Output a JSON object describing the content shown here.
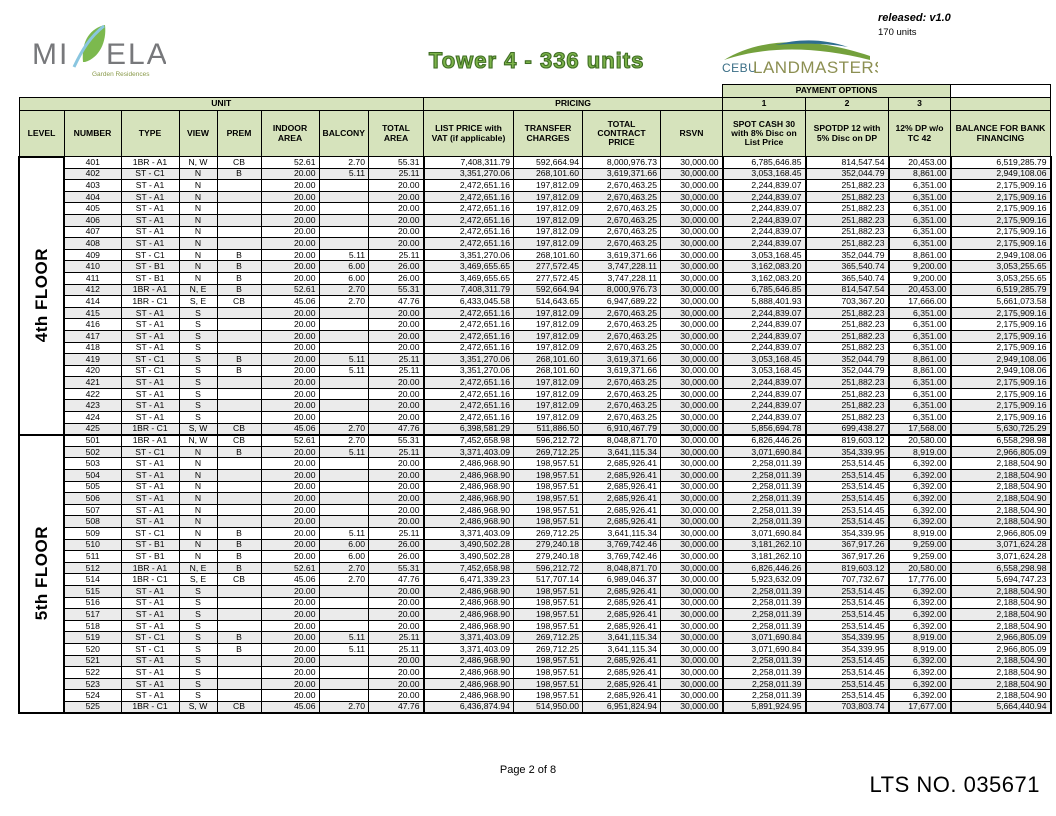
{
  "header": {
    "title": "Tower 4 - 336 units",
    "released": "released: v1.0",
    "units_count": "170 units",
    "brand_left": {
      "name_left": "MI",
      "name_right": "ELA",
      "subtitle": "Garden Residences"
    },
    "brand_right": {
      "cebu": "CEBU",
      "landmasters": "LANDMASTERS"
    },
    "colors": {
      "header_green": "#d6e3bc",
      "title_green": "#7cb34a",
      "title_outline": "#3f6d24",
      "leaf_green": "#7cb94e",
      "swoosh_blue": "#8ac6e0",
      "brand_gray": "#77787b",
      "hill_green": "#74a13c",
      "hill_blue": "#2e6e8e",
      "cebu_blue": "#3a6e86",
      "landmasters_olive": "#8c8f52"
    }
  },
  "table": {
    "groups": {
      "unit": "UNIT",
      "pricing": "PRICING",
      "payment": "PAYMENT OPTIONS"
    },
    "payment_numbers": [
      "1",
      "2",
      "3"
    ],
    "columns": [
      "LEVEL",
      "NUMBER",
      "TYPE",
      "VIEW",
      "PREM",
      "INDOOR AREA",
      "BALCONY",
      "TOTAL AREA",
      "LIST PRICE with VAT (if applicable)",
      "TRANSFER CHARGES",
      "TOTAL CONTRACT PRICE",
      "RSVN",
      "SPOT CASH 30 with 8% Disc on List Price",
      "SPOTDP 12 with 5% Disc on DP",
      "12% DP w/o TC 42",
      "BALANCE FOR BANK FINANCING"
    ],
    "column_keys": [
      "number",
      "type",
      "view",
      "prem",
      "indoor_area",
      "balcony",
      "total_area",
      "list_price",
      "transfer_charges",
      "total_contract_price",
      "rsvn",
      "spot_cash_30",
      "spotdp_12",
      "dp_12_wo_tc",
      "bank_balance"
    ],
    "floors": [
      {
        "label": "4th FLOOR",
        "rows": [
          [
            "401",
            "1BR - A1",
            "N, W",
            "CB",
            "52.61",
            "2.70",
            "55.31",
            "7,408,311.79",
            "592,664.94",
            "8,000,976.73",
            "30,000.00",
            "6,785,646.85",
            "814,547.54",
            "20,453.00",
            "6,519,285.79"
          ],
          [
            "402",
            "ST - C1",
            "N",
            "B",
            "20.00",
            "5.11",
            "25.11",
            "3,351,270.06",
            "268,101.60",
            "3,619,371.66",
            "30,000.00",
            "3,053,168.45",
            "352,044.79",
            "8,861.00",
            "2,949,108.06"
          ],
          [
            "403",
            "ST - A1",
            "N",
            "",
            "20.00",
            "",
            "20.00",
            "2,472,651.16",
            "197,812.09",
            "2,670,463.25",
            "30,000.00",
            "2,244,839.07",
            "251,882.23",
            "6,351.00",
            "2,175,909.16"
          ],
          [
            "404",
            "ST - A1",
            "N",
            "",
            "20.00",
            "",
            "20.00",
            "2,472,651.16",
            "197,812.09",
            "2,670,463.25",
            "30,000.00",
            "2,244,839.07",
            "251,882.23",
            "6,351.00",
            "2,175,909.16"
          ],
          [
            "405",
            "ST - A1",
            "N",
            "",
            "20.00",
            "",
            "20.00",
            "2,472,651.16",
            "197,812.09",
            "2,670,463.25",
            "30,000.00",
            "2,244,839.07",
            "251,882.23",
            "6,351.00",
            "2,175,909.16"
          ],
          [
            "406",
            "ST - A1",
            "N",
            "",
            "20.00",
            "",
            "20.00",
            "2,472,651.16",
            "197,812.09",
            "2,670,463.25",
            "30,000.00",
            "2,244,839.07",
            "251,882.23",
            "6,351.00",
            "2,175,909.16"
          ],
          [
            "407",
            "ST - A1",
            "N",
            "",
            "20.00",
            "",
            "20.00",
            "2,472,651.16",
            "197,812.09",
            "2,670,463.25",
            "30,000.00",
            "2,244,839.07",
            "251,882.23",
            "6,351.00",
            "2,175,909.16"
          ],
          [
            "408",
            "ST - A1",
            "N",
            "",
            "20.00",
            "",
            "20.00",
            "2,472,651.16",
            "197,812.09",
            "2,670,463.25",
            "30,000.00",
            "2,244,839.07",
            "251,882.23",
            "6,351.00",
            "2,175,909.16"
          ],
          [
            "409",
            "ST - C1",
            "N",
            "B",
            "20.00",
            "5.11",
            "25.11",
            "3,351,270.06",
            "268,101.60",
            "3,619,371.66",
            "30,000.00",
            "3,053,168.45",
            "352,044.79",
            "8,861.00",
            "2,949,108.06"
          ],
          [
            "410",
            "ST - B1",
            "N",
            "B",
            "20.00",
            "6.00",
            "26.00",
            "3,469,655.65",
            "277,572.45",
            "3,747,228.11",
            "30,000.00",
            "3,162,083.20",
            "365,540.74",
            "9,200.00",
            "3,053,255.65"
          ],
          [
            "411",
            "ST - B1",
            "N",
            "B",
            "20.00",
            "6.00",
            "26.00",
            "3,469,655.65",
            "277,572.45",
            "3,747,228.11",
            "30,000.00",
            "3,162,083.20",
            "365,540.74",
            "9,200.00",
            "3,053,255.65"
          ],
          [
            "412",
            "1BR - A1",
            "N, E",
            "B",
            "52.61",
            "2.70",
            "55.31",
            "7,408,311.79",
            "592,664.94",
            "8,000,976.73",
            "30,000.00",
            "6,785,646.85",
            "814,547.54",
            "20,453.00",
            "6,519,285.79"
          ],
          [
            "414",
            "1BR - C1",
            "S, E",
            "CB",
            "45.06",
            "2.70",
            "47.76",
            "6,433,045.58",
            "514,643.65",
            "6,947,689.22",
            "30,000.00",
            "5,888,401.93",
            "703,367.20",
            "17,666.00",
            "5,661,073.58"
          ],
          [
            "415",
            "ST - A1",
            "S",
            "",
            "20.00",
            "",
            "20.00",
            "2,472,651.16",
            "197,812.09",
            "2,670,463.25",
            "30,000.00",
            "2,244,839.07",
            "251,882.23",
            "6,351.00",
            "2,175,909.16"
          ],
          [
            "416",
            "ST - A1",
            "S",
            "",
            "20.00",
            "",
            "20.00",
            "2,472,651.16",
            "197,812.09",
            "2,670,463.25",
            "30,000.00",
            "2,244,839.07",
            "251,882.23",
            "6,351.00",
            "2,175,909.16"
          ],
          [
            "417",
            "ST - A1",
            "S",
            "",
            "20.00",
            "",
            "20.00",
            "2,472,651.16",
            "197,812.09",
            "2,670,463.25",
            "30,000.00",
            "2,244,839.07",
            "251,882.23",
            "6,351.00",
            "2,175,909.16"
          ],
          [
            "418",
            "ST - A1",
            "S",
            "",
            "20.00",
            "",
            "20.00",
            "2,472,651.16",
            "197,812.09",
            "2,670,463.25",
            "30,000.00",
            "2,244,839.07",
            "251,882.23",
            "6,351.00",
            "2,175,909.16"
          ],
          [
            "419",
            "ST - C1",
            "S",
            "B",
            "20.00",
            "5.11",
            "25.11",
            "3,351,270.06",
            "268,101.60",
            "3,619,371.66",
            "30,000.00",
            "3,053,168.45",
            "352,044.79",
            "8,861.00",
            "2,949,108.06"
          ],
          [
            "420",
            "ST - C1",
            "S",
            "B",
            "20.00",
            "5.11",
            "25.11",
            "3,351,270.06",
            "268,101.60",
            "3,619,371.66",
            "30,000.00",
            "3,053,168.45",
            "352,044.79",
            "8,861.00",
            "2,949,108.06"
          ],
          [
            "421",
            "ST - A1",
            "S",
            "",
            "20.00",
            "",
            "20.00",
            "2,472,651.16",
            "197,812.09",
            "2,670,463.25",
            "30,000.00",
            "2,244,839.07",
            "251,882.23",
            "6,351.00",
            "2,175,909.16"
          ],
          [
            "422",
            "ST - A1",
            "S",
            "",
            "20.00",
            "",
            "20.00",
            "2,472,651.16",
            "197,812.09",
            "2,670,463.25",
            "30,000.00",
            "2,244,839.07",
            "251,882.23",
            "6,351.00",
            "2,175,909.16"
          ],
          [
            "423",
            "ST - A1",
            "S",
            "",
            "20.00",
            "",
            "20.00",
            "2,472,651.16",
            "197,812.09",
            "2,670,463.25",
            "30,000.00",
            "2,244,839.07",
            "251,882.23",
            "6,351.00",
            "2,175,909.16"
          ],
          [
            "424",
            "ST - A1",
            "S",
            "",
            "20.00",
            "",
            "20.00",
            "2,472,651.16",
            "197,812.09",
            "2,670,463.25",
            "30,000.00",
            "2,244,839.07",
            "251,882.23",
            "6,351.00",
            "2,175,909.16"
          ],
          [
            "425",
            "1BR - C1",
            "S, W",
            "CB",
            "45.06",
            "2.70",
            "47.76",
            "6,398,581.29",
            "511,886.50",
            "6,910,467.79",
            "30,000.00",
            "5,856,694.78",
            "699,438.27",
            "17,568.00",
            "5,630,725.29"
          ]
        ]
      },
      {
        "label": "5th FLOOR",
        "rows": [
          [
            "501",
            "1BR - A1",
            "N, W",
            "CB",
            "52.61",
            "2.70",
            "55.31",
            "7,452,658.98",
            "596,212.72",
            "8,048,871.70",
            "30,000.00",
            "6,826,446.26",
            "819,603.12",
            "20,580.00",
            "6,558,298.98"
          ],
          [
            "502",
            "ST - C1",
            "N",
            "B",
            "20.00",
            "5.11",
            "25.11",
            "3,371,403.09",
            "269,712.25",
            "3,641,115.34",
            "30,000.00",
            "3,071,690.84",
            "354,339.95",
            "8,919.00",
            "2,966,805.09"
          ],
          [
            "503",
            "ST - A1",
            "N",
            "",
            "20.00",
            "",
            "20.00",
            "2,486,968.90",
            "198,957.51",
            "2,685,926.41",
            "30,000.00",
            "2,258,011.39",
            "253,514.45",
            "6,392.00",
            "2,188,504.90"
          ],
          [
            "504",
            "ST - A1",
            "N",
            "",
            "20.00",
            "",
            "20.00",
            "2,486,968.90",
            "198,957.51",
            "2,685,926.41",
            "30,000.00",
            "2,258,011.39",
            "253,514.45",
            "6,392.00",
            "2,188,504.90"
          ],
          [
            "505",
            "ST - A1",
            "N",
            "",
            "20.00",
            "",
            "20.00",
            "2,486,968.90",
            "198,957.51",
            "2,685,926.41",
            "30,000.00",
            "2,258,011.39",
            "253,514.45",
            "6,392.00",
            "2,188,504.90"
          ],
          [
            "506",
            "ST - A1",
            "N",
            "",
            "20.00",
            "",
            "20.00",
            "2,486,968.90",
            "198,957.51",
            "2,685,926.41",
            "30,000.00",
            "2,258,011.39",
            "253,514.45",
            "6,392.00",
            "2,188,504.90"
          ],
          [
            "507",
            "ST - A1",
            "N",
            "",
            "20.00",
            "",
            "20.00",
            "2,486,968.90",
            "198,957.51",
            "2,685,926.41",
            "30,000.00",
            "2,258,011.39",
            "253,514.45",
            "6,392.00",
            "2,188,504.90"
          ],
          [
            "508",
            "ST - A1",
            "N",
            "",
            "20.00",
            "",
            "20.00",
            "2,486,968.90",
            "198,957.51",
            "2,685,926.41",
            "30,000.00",
            "2,258,011.39",
            "253,514.45",
            "6,392.00",
            "2,188,504.90"
          ],
          [
            "509",
            "ST - C1",
            "N",
            "B",
            "20.00",
            "5.11",
            "25.11",
            "3,371,403.09",
            "269,712.25",
            "3,641,115.34",
            "30,000.00",
            "3,071,690.84",
            "354,339.95",
            "8,919.00",
            "2,966,805.09"
          ],
          [
            "510",
            "ST - B1",
            "N",
            "B",
            "20.00",
            "6.00",
            "26.00",
            "3,490,502.28",
            "279,240.18",
            "3,769,742.46",
            "30,000.00",
            "3,181,262.10",
            "367,917.26",
            "9,259.00",
            "3,071,624.28"
          ],
          [
            "511",
            "ST - B1",
            "N",
            "B",
            "20.00",
            "6.00",
            "26.00",
            "3,490,502.28",
            "279,240.18",
            "3,769,742.46",
            "30,000.00",
            "3,181,262.10",
            "367,917.26",
            "9,259.00",
            "3,071,624.28"
          ],
          [
            "512",
            "1BR - A1",
            "N, E",
            "B",
            "52.61",
            "2.70",
            "55.31",
            "7,452,658.98",
            "596,212.72",
            "8,048,871.70",
            "30,000.00",
            "6,826,446.26",
            "819,603.12",
            "20,580.00",
            "6,558,298.98"
          ],
          [
            "514",
            "1BR - C1",
            "S, E",
            "CB",
            "45.06",
            "2.70",
            "47.76",
            "6,471,339.23",
            "517,707.14",
            "6,989,046.37",
            "30,000.00",
            "5,923,632.09",
            "707,732.67",
            "17,776.00",
            "5,694,747.23"
          ],
          [
            "515",
            "ST - A1",
            "S",
            "",
            "20.00",
            "",
            "20.00",
            "2,486,968.90",
            "198,957.51",
            "2,685,926.41",
            "30,000.00",
            "2,258,011.39",
            "253,514.45",
            "6,392.00",
            "2,188,504.90"
          ],
          [
            "516",
            "ST - A1",
            "S",
            "",
            "20.00",
            "",
            "20.00",
            "2,486,968.90",
            "198,957.51",
            "2,685,926.41",
            "30,000.00",
            "2,258,011.39",
            "253,514.45",
            "6,392.00",
            "2,188,504.90"
          ],
          [
            "517",
            "ST - A1",
            "S",
            "",
            "20.00",
            "",
            "20.00",
            "2,486,968.90",
            "198,957.51",
            "2,685,926.41",
            "30,000.00",
            "2,258,011.39",
            "253,514.45",
            "6,392.00",
            "2,188,504.90"
          ],
          [
            "518",
            "ST - A1",
            "S",
            "",
            "20.00",
            "",
            "20.00",
            "2,486,968.90",
            "198,957.51",
            "2,685,926.41",
            "30,000.00",
            "2,258,011.39",
            "253,514.45",
            "6,392.00",
            "2,188,504.90"
          ],
          [
            "519",
            "ST - C1",
            "S",
            "B",
            "20.00",
            "5.11",
            "25.11",
            "3,371,403.09",
            "269,712.25",
            "3,641,115.34",
            "30,000.00",
            "3,071,690.84",
            "354,339.95",
            "8,919.00",
            "2,966,805.09"
          ],
          [
            "520",
            "ST - C1",
            "S",
            "B",
            "20.00",
            "5.11",
            "25.11",
            "3,371,403.09",
            "269,712.25",
            "3,641,115.34",
            "30,000.00",
            "3,071,690.84",
            "354,339.95",
            "8,919.00",
            "2,966,805.09"
          ],
          [
            "521",
            "ST - A1",
            "S",
            "",
            "20.00",
            "",
            "20.00",
            "2,486,968.90",
            "198,957.51",
            "2,685,926.41",
            "30,000.00",
            "2,258,011.39",
            "253,514.45",
            "6,392.00",
            "2,188,504.90"
          ],
          [
            "522",
            "ST - A1",
            "S",
            "",
            "20.00",
            "",
            "20.00",
            "2,486,968.90",
            "198,957.51",
            "2,685,926.41",
            "30,000.00",
            "2,258,011.39",
            "253,514.45",
            "6,392.00",
            "2,188,504.90"
          ],
          [
            "523",
            "ST - A1",
            "S",
            "",
            "20.00",
            "",
            "20.00",
            "2,486,968.90",
            "198,957.51",
            "2,685,926.41",
            "30,000.00",
            "2,258,011.39",
            "253,514.45",
            "6,392.00",
            "2,188,504.90"
          ],
          [
            "524",
            "ST - A1",
            "S",
            "",
            "20.00",
            "",
            "20.00",
            "2,486,968.90",
            "198,957.51",
            "2,685,926.41",
            "30,000.00",
            "2,258,011.39",
            "253,514.45",
            "6,392.00",
            "2,188,504.90"
          ],
          [
            "525",
            "1BR - C1",
            "S, W",
            "CB",
            "45.06",
            "2.70",
            "47.76",
            "6,436,874.94",
            "514,950.00",
            "6,951,824.94",
            "30,000.00",
            "5,891,924.95",
            "703,803.74",
            "17,677.00",
            "5,664,440.94"
          ]
        ]
      }
    ]
  },
  "footer": {
    "page": "Page 2 of 8",
    "lts": "LTS NO. 035671"
  }
}
